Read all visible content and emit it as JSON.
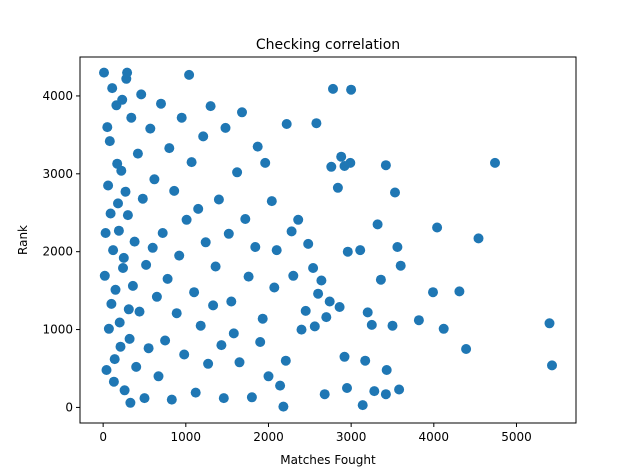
{
  "chart_data": {
    "type": "scatter",
    "title": "Checking correlation",
    "xlabel": "Matches Fought",
    "ylabel": "Rank",
    "xlim": [
      -280,
      5720
    ],
    "ylim": [
      -200,
      4500
    ],
    "xticks": [
      0,
      1000,
      2000,
      3000,
      4000,
      5000
    ],
    "yticks": [
      0,
      1000,
      2000,
      3000,
      4000
    ],
    "grid": false,
    "marker_color": "#1f77b4",
    "points": [
      [
        4740,
        3140
      ],
      [
        5400,
        1080
      ],
      [
        5430,
        540
      ],
      [
        4540,
        2170
      ],
      [
        4310,
        1490
      ],
      [
        4390,
        750
      ],
      [
        4120,
        1010
      ],
      [
        4040,
        2310
      ],
      [
        3990,
        1480
      ],
      [
        3820,
        1120
      ],
      [
        3600,
        1820
      ],
      [
        3560,
        2060
      ],
      [
        3530,
        2760
      ],
      [
        3420,
        3110
      ],
      [
        3580,
        230
      ],
      [
        3500,
        1050
      ],
      [
        3430,
        480
      ],
      [
        3420,
        170
      ],
      [
        3360,
        1640
      ],
      [
        3320,
        2350
      ],
      [
        3280,
        210
      ],
      [
        3250,
        1060
      ],
      [
        3200,
        1220
      ],
      [
        3170,
        600
      ],
      [
        3140,
        30
      ],
      [
        3110,
        2020
      ],
      [
        3000,
        4080
      ],
      [
        2990,
        3140
      ],
      [
        2960,
        2000
      ],
      [
        2950,
        250
      ],
      [
        2920,
        650
      ],
      [
        2920,
        3100
      ],
      [
        2880,
        3220
      ],
      [
        2860,
        1290
      ],
      [
        2840,
        2820
      ],
      [
        2780,
        4090
      ],
      [
        2760,
        3090
      ],
      [
        2740,
        1360
      ],
      [
        2700,
        1160
      ],
      [
        2680,
        170
      ],
      [
        2640,
        1630
      ],
      [
        2600,
        1460
      ],
      [
        2580,
        3650
      ],
      [
        2560,
        1040
      ],
      [
        2540,
        1790
      ],
      [
        2480,
        2100
      ],
      [
        2450,
        1240
      ],
      [
        2400,
        1000
      ],
      [
        2360,
        2410
      ],
      [
        2300,
        1690
      ],
      [
        2280,
        2260
      ],
      [
        2220,
        3640
      ],
      [
        2210,
        600
      ],
      [
        2180,
        10
      ],
      [
        2140,
        280
      ],
      [
        2100,
        2020
      ],
      [
        2070,
        1540
      ],
      [
        2040,
        2650
      ],
      [
        2000,
        400
      ],
      [
        1960,
        3140
      ],
      [
        1930,
        1140
      ],
      [
        1900,
        840
      ],
      [
        1870,
        3350
      ],
      [
        1840,
        2060
      ],
      [
        1800,
        130
      ],
      [
        1760,
        1680
      ],
      [
        1720,
        2420
      ],
      [
        1680,
        3790
      ],
      [
        1650,
        580
      ],
      [
        1620,
        3020
      ],
      [
        1580,
        950
      ],
      [
        1550,
        1360
      ],
      [
        1520,
        2230
      ],
      [
        1480,
        3590
      ],
      [
        1460,
        120
      ],
      [
        1430,
        800
      ],
      [
        1400,
        2670
      ],
      [
        1360,
        1810
      ],
      [
        1330,
        1310
      ],
      [
        1300,
        3870
      ],
      [
        1270,
        560
      ],
      [
        1240,
        2120
      ],
      [
        1210,
        3480
      ],
      [
        1180,
        1050
      ],
      [
        1150,
        2550
      ],
      [
        1120,
        190
      ],
      [
        1100,
        1480
      ],
      [
        1070,
        3150
      ],
      [
        1040,
        4270
      ],
      [
        1010,
        2410
      ],
      [
        980,
        680
      ],
      [
        950,
        3720
      ],
      [
        920,
        1950
      ],
      [
        890,
        1210
      ],
      [
        860,
        2780
      ],
      [
        830,
        100
      ],
      [
        800,
        3330
      ],
      [
        780,
        1650
      ],
      [
        750,
        860
      ],
      [
        720,
        2240
      ],
      [
        700,
        3900
      ],
      [
        670,
        400
      ],
      [
        650,
        1420
      ],
      [
        620,
        2930
      ],
      [
        600,
        2050
      ],
      [
        570,
        3580
      ],
      [
        550,
        760
      ],
      [
        520,
        1830
      ],
      [
        500,
        120
      ],
      [
        480,
        2680
      ],
      [
        460,
        4020
      ],
      [
        440,
        1230
      ],
      [
        420,
        3260
      ],
      [
        400,
        520
      ],
      [
        380,
        2130
      ],
      [
        360,
        1560
      ],
      [
        340,
        3720
      ],
      [
        320,
        880
      ],
      [
        300,
        2470
      ],
      [
        280,
        4220
      ],
      [
        260,
        220
      ],
      [
        240,
        1790
      ],
      [
        220,
        3040
      ],
      [
        200,
        1090
      ],
      [
        180,
        2620
      ],
      [
        160,
        3880
      ],
      [
        140,
        620
      ],
      [
        120,
        2020
      ],
      [
        100,
        1330
      ],
      [
        80,
        3420
      ],
      [
        60,
        2850
      ],
      [
        40,
        480
      ],
      [
        20,
        1690
      ],
      [
        10,
        4300
      ],
      [
        30,
        2240
      ],
      [
        50,
        3600
      ],
      [
        70,
        1010
      ],
      [
        90,
        2490
      ],
      [
        110,
        4100
      ],
      [
        130,
        330
      ],
      [
        150,
        1510
      ],
      [
        170,
        3130
      ],
      [
        190,
        2270
      ],
      [
        210,
        780
      ],
      [
        230,
        3950
      ],
      [
        250,
        1920
      ],
      [
        270,
        2770
      ],
      [
        290,
        4300
      ],
      [
        310,
        1260
      ],
      [
        330,
        60
      ]
    ]
  }
}
